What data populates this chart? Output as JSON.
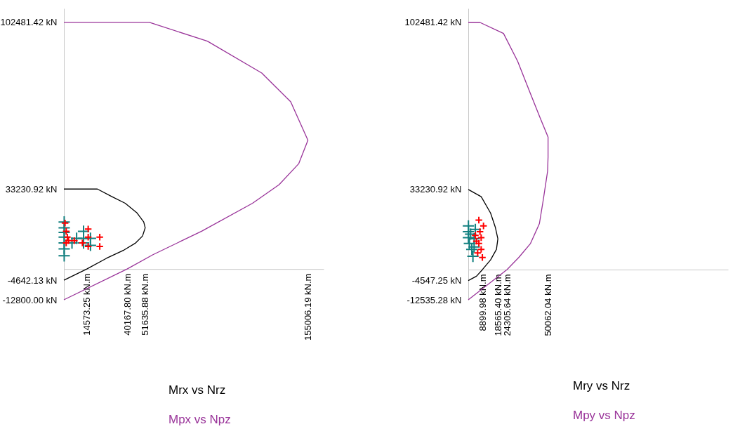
{
  "chart_data": [
    {
      "type": "line",
      "xlim": [
        0,
        165000
      ],
      "ylim": [
        -12800,
        108300
      ],
      "xticks": [
        {
          "value": 14573.25,
          "label": "14573.25 kN.m"
        },
        {
          "value": 40167.8,
          "label": "40167.80 kN.m"
        },
        {
          "value": 51635.88,
          "label": "51635.88 kN.m"
        },
        {
          "value": 155006.19,
          "label": "155006.19 kN.m"
        }
      ],
      "yticks": [
        {
          "value": 102481.42,
          "label": "102481.42 kN"
        },
        {
          "value": 33230.92,
          "label": "33230.92 kN"
        },
        {
          "value": -4642.13,
          "label": "-4642.13 kN"
        },
        {
          "value": -12800,
          "label": "-12800.00 kN"
        }
      ],
      "legend": "bottom",
      "series": [
        {
          "name": "Mrx vs Nrz",
          "color": "#000000",
          "x": [
            0,
            21300,
            30120,
            38940,
            46305,
            50715,
            51635.88,
            49965,
            45555,
            38235,
            27210,
            14573.25,
            0
          ],
          "values": [
            33230.92,
            33230.92,
            30226,
            27316,
            23416,
            19546,
            17131,
            13726,
            10816,
            7906,
            4501,
            0,
            -4642.13
          ]
        },
        {
          "name": "Mpx vs Npz",
          "color": "#993399",
          "x": [
            0,
            54375,
            91155,
            125685,
            144075,
            155006.19,
            149190,
            136710,
            119820,
            87450,
            56580,
            40167.8,
            0
          ],
          "values": [
            102481.42,
            102481.42,
            94711,
            81442,
            69511,
            53506,
            43786,
            35056,
            27316,
            15676,
            5956,
            0,
            -12800
          ]
        },
        {
          "type": "scatter",
          "marker": "cross",
          "color": "#138080",
          "x": [
            200,
            200,
            200,
            200,
            200,
            200,
            200,
            12490,
            12490,
            12490,
            16890,
            16890,
            8080,
            5150
          ],
          "values": [
            19546,
            17121,
            15181,
            13241,
            10816,
            8391,
            5481,
            15676,
            12766,
            10816,
            12766,
            9846,
            12766,
            10816
          ]
        },
        {
          "type": "scatter",
          "marker": "cross",
          "color": "#ff0000",
          "x": [
            735,
            1470,
            2205,
            1470,
            2940,
            6615,
            15435,
            15435,
            22785,
            15435,
            22785,
            11760
          ],
          "values": [
            19061,
            15676,
            13241,
            10816,
            11786,
            11786,
            16636,
            13241,
            13241,
            9361,
            9361,
            10816
          ]
        }
      ]
    },
    {
      "type": "line",
      "xlim": [
        0,
        163000
      ],
      "ylim": [
        -12535.28,
        108300
      ],
      "xticks": [
        {
          "value": 8899.98,
          "label": "8899.98 kN.m"
        },
        {
          "value": 18565.4,
          "label": "18565.40 kN.m"
        },
        {
          "value": 24305.64,
          "label": "24305.64 kN.m"
        },
        {
          "value": 50062.04,
          "label": "50062.04 kN.m"
        }
      ],
      "yticks": [
        {
          "value": 102481.42,
          "label": "102481.42 kN"
        },
        {
          "value": 33230.92,
          "label": "33230.92 kN"
        },
        {
          "value": -4547.25,
          "label": "-4547.25 kN"
        },
        {
          "value": -12535.28,
          "label": "-12535.28 kN"
        }
      ],
      "legend": "bottom",
      "series": [
        {
          "name": "Mry vs Nrz",
          "color": "#000000",
          "x": [
            0,
            8100,
            14000,
            16940,
            18565.4,
            17680,
            14000,
            8899.98,
            5155,
            0
          ],
          "values": [
            33230.92,
            30216,
            23426,
            17606,
            12756,
            8391,
            4026,
            0,
            -2764,
            -4547.25
          ]
        },
        {
          "name": "Mpy vs Npz",
          "color": "#993399",
          "x": [
            0,
            7365,
            22100,
            30930,
            39035,
            44930,
            50062.04,
            50060,
            49790,
            47140,
            44630,
            39035,
            31670,
            24305.64,
            0
          ],
          "values": [
            102481.42,
            102481.42,
            97922,
            86476,
            72896,
            63196,
            54951,
            46706,
            40886,
            29246,
            19061,
            10816,
            4996,
            0,
            -12535.28
          ]
        },
        {
          "type": "scatter",
          "marker": "cross",
          "color": "#138080",
          "x": [
            100,
            100,
            100,
            710,
            2210,
            2920,
            4420,
            3670,
            3670,
            1460
          ],
          "values": [
            18091,
            15676,
            13241,
            10816,
            8391,
            5481,
            16636,
            12766,
            9361,
            14696
          ]
        },
        {
          "type": "scatter",
          "marker": "cross",
          "color": "#ff0000",
          "x": [
            6630,
            9550,
            7340,
            8090,
            6630,
            8090,
            5880,
            8840,
            5130,
            4420
          ],
          "values": [
            20506,
            18091,
            15676,
            13241,
            10816,
            8391,
            6936,
            4996,
            11786,
            14211
          ]
        }
      ]
    }
  ]
}
